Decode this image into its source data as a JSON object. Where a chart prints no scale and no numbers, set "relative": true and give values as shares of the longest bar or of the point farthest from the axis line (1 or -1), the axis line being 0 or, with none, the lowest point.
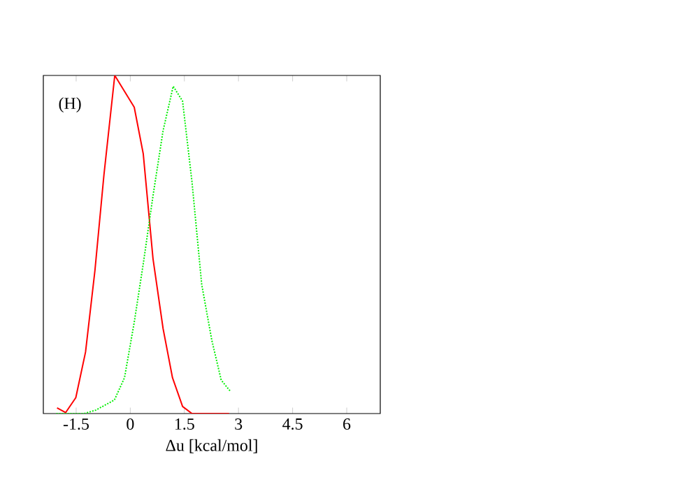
{
  "chart_data": {
    "type": "line",
    "xlabel": "Δu [kcal/mol]",
    "relative": true,
    "annotations": [
      "(H)"
    ],
    "xlim": [
      -2.41,
      6.93
    ],
    "xticks": [
      -1.5,
      0,
      1.5,
      3,
      4.5,
      6
    ],
    "tick_labels": "x",
    "series": [
      {
        "color": "#ff0000",
        "line_style": "solid",
        "x": [
          -2.03,
          -1.79,
          -1.51,
          -1.24,
          -0.98,
          -0.73,
          -0.43,
          0.11,
          0.36,
          0.63,
          0.91,
          1.17,
          1.45,
          1.71,
          2.74
        ],
        "values": [
          0.017,
          0.003,
          0.047,
          0.182,
          0.423,
          0.706,
          1.0,
          0.906,
          0.768,
          0.458,
          0.251,
          0.106,
          0.021,
          0,
          0
        ]
      },
      {
        "color": "#00ee00",
        "line_style": "dotted",
        "x": [
          -2.05,
          -1.28,
          -0.96,
          -0.44,
          -0.16,
          0.11,
          0.37,
          0.63,
          0.91,
          1.19,
          1.45,
          1.71,
          1.98,
          2.26,
          2.52,
          2.78
        ],
        "values": [
          0,
          0,
          0.01,
          0.04,
          0.106,
          0.27,
          0.45,
          0.644,
          0.837,
          0.968,
          0.924,
          0.686,
          0.382,
          0.217,
          0.099,
          0.065
        ]
      }
    ]
  }
}
